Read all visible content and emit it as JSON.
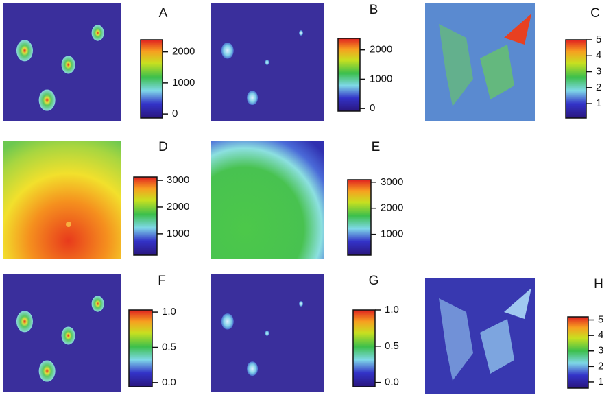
{
  "chart_data": [
    {
      "type": "heatmap",
      "title": "A",
      "colorbar": {
        "ylim": [
          -130,
          2390
        ],
        "yticks": [
          0,
          1000,
          2000
        ]
      }
    },
    {
      "type": "heatmap",
      "title": "B",
      "colorbar": {
        "ylim": [
          -90,
          2390
        ],
        "yticks": [
          0,
          1000,
          2000
        ]
      }
    },
    {
      "type": "heatmap",
      "title": "C",
      "colorbar": {
        "ylim": [
          0.1,
          5.0
        ],
        "yticks": [
          1,
          2,
          3,
          4,
          5
        ]
      }
    },
    {
      "type": "heatmap",
      "title": "D",
      "colorbar": {
        "ylim": [
          200,
          3130
        ],
        "yticks": [
          1000,
          2000,
          3000
        ]
      }
    },
    {
      "type": "heatmap",
      "title": "E",
      "colorbar": {
        "ylim": [
          200,
          3100
        ],
        "yticks": [
          1000,
          2000,
          3000
        ]
      }
    },
    {
      "type": "heatmap",
      "title": "F",
      "colorbar": {
        "ylim": [
          -0.06,
          1.03
        ],
        "yticks": [
          {
            "value": 0,
            "label": "0.0"
          },
          0.5,
          {
            "value": 1,
            "label": "1.0"
          }
        ]
      }
    },
    {
      "type": "heatmap",
      "title": "G",
      "colorbar": {
        "ylim": [
          -0.06,
          1.0
        ],
        "yticks": [
          {
            "value": 0,
            "label": "0.0"
          },
          0.5,
          {
            "value": 1,
            "label": "1.0"
          }
        ]
      }
    },
    {
      "type": "heatmap",
      "title": "H",
      "colorbar": {
        "ylim": [
          0.6,
          5.2
        ],
        "yticks": [
          1,
          2,
          3,
          4,
          5
        ]
      }
    }
  ]
}
